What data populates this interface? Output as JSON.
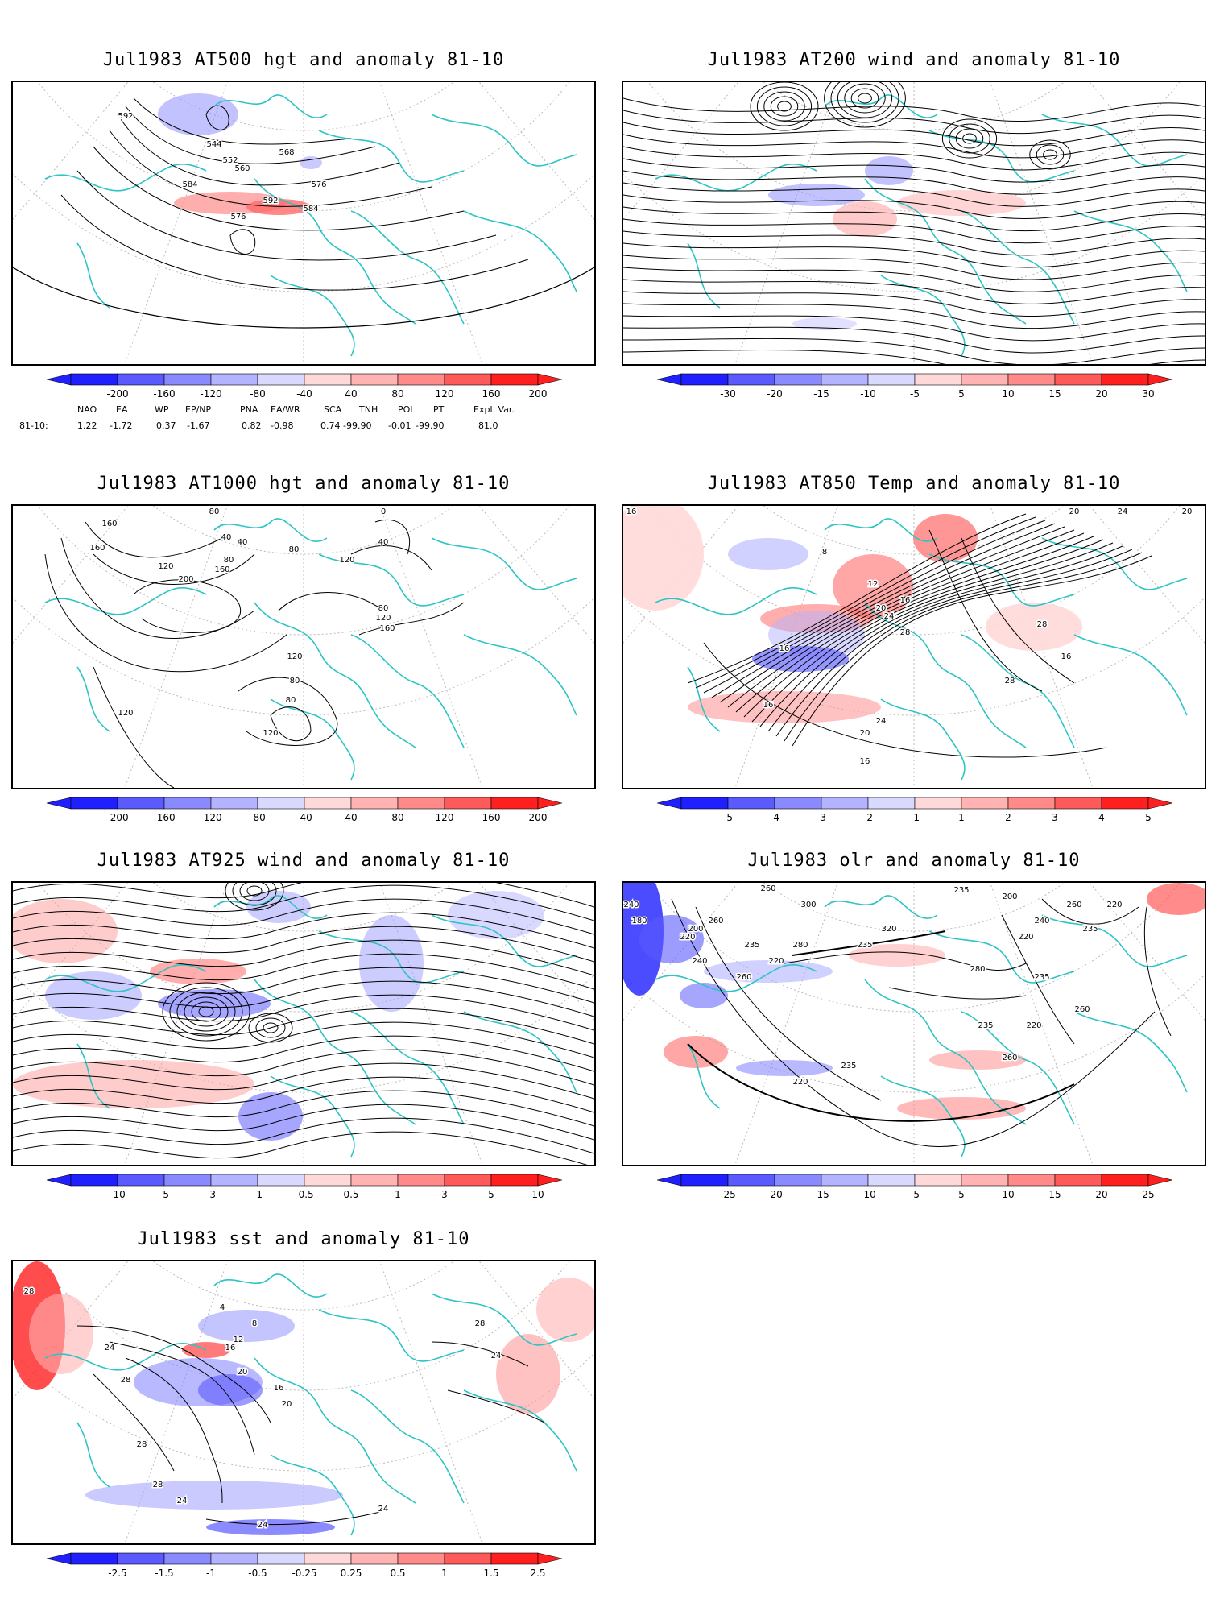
{
  "colors": {
    "coast": "#2ec4c4",
    "contour": "#000000",
    "grid": "#bbbbbb",
    "scale": [
      "#1f1fff",
      "#5a5aff",
      "#8a8aff",
      "#b3b3ff",
      "#d9d9ff",
      "#ffffff",
      "#ffd9d9",
      "#ffb3b3",
      "#ff8a8a",
      "#ff5a5a",
      "#ff1f1f"
    ]
  },
  "panels": [
    {
      "title": "Jul1983 AT500 hgt and anomaly 81-10",
      "colorbar_ticks": [
        "-200",
        "-160",
        "-120",
        "-80",
        "-40",
        "40",
        "80",
        "120",
        "160",
        "200"
      ],
      "contour_labels": [
        "592",
        "544",
        "552",
        "560",
        "568",
        "584",
        "576",
        "576",
        "592",
        "584"
      ],
      "indices_header": [
        "NAO",
        "EA",
        "WP",
        "EP/NP",
        "PNA",
        "EA/WR",
        "SCA",
        "TNH",
        "POL",
        "PT",
        "Expl. Var."
      ],
      "indices_row_label": "81-10:",
      "indices_values": [
        "1.22",
        "-1.72",
        "0.37",
        "-1.67",
        "0.82",
        "-0.98",
        "0.74",
        "-99.90",
        "-0.01",
        "-99.90",
        "81.0"
      ]
    },
    {
      "title": "Jul1983 AT200 wind and anomaly 81-10",
      "colorbar_ticks": [
        "-30",
        "-20",
        "-15",
        "-10",
        "-5",
        "5",
        "10",
        "15",
        "20",
        "30"
      ],
      "contour_labels": []
    },
    {
      "title": "Jul1983 AT1000 hgt and anomaly 81-10",
      "colorbar_ticks": [
        "-200",
        "-160",
        "-120",
        "-80",
        "-40",
        "40",
        "80",
        "120",
        "160",
        "200"
      ],
      "contour_labels": [
        "80",
        "0",
        "160",
        "160",
        "40",
        "120",
        "160",
        "200",
        "80",
        "40",
        "80",
        "120",
        "40",
        "80",
        "120",
        "160",
        "120",
        "80",
        "80",
        "120",
        "120"
      ]
    },
    {
      "title": "Jul1983 AT850 Temp and anomaly 81-10",
      "colorbar_ticks": [
        "-5",
        "-4",
        "-3",
        "-2",
        "-1",
        "1",
        "2",
        "3",
        "4",
        "5"
      ],
      "contour_labels": [
        "16",
        "20",
        "24",
        "20",
        "8",
        "12",
        "16",
        "20",
        "24",
        "28",
        "16",
        "28",
        "16",
        "24",
        "20",
        "16",
        "28",
        "16"
      ]
    },
    {
      "title": "Jul1983 AT925 wind and anomaly 81-10",
      "colorbar_ticks": [
        "-10",
        "-5",
        "-3",
        "-1",
        "-0.5",
        "0.5",
        "1",
        "3",
        "5",
        "10"
      ],
      "contour_labels": []
    },
    {
      "title": "Jul1983 olr and anomaly 81-10",
      "colorbar_ticks": [
        "-25",
        "-20",
        "-15",
        "-10",
        "-5",
        "5",
        "10",
        "15",
        "20",
        "25"
      ],
      "contour_labels": [
        "260",
        "240",
        "235",
        "200",
        "220",
        "180",
        "200",
        "220",
        "240",
        "260",
        "235",
        "220",
        "260",
        "280",
        "300",
        "320",
        "235",
        "280",
        "240",
        "260",
        "235",
        "220",
        "235",
        "260",
        "220",
        "235",
        "235",
        "220",
        "260"
      ]
    },
    {
      "title": "Jul1983 sst and anomaly 81-10",
      "colorbar_ticks": [
        "-2.5",
        "-1.5",
        "-1",
        "-0.5",
        "-0.25",
        "0.25",
        "0.5",
        "1",
        "1.5",
        "2.5"
      ],
      "contour_labels": [
        "28",
        "4",
        "8",
        "12",
        "16",
        "20",
        "24",
        "28",
        "28",
        "24",
        "20",
        "28",
        "24",
        "24",
        "16",
        "28",
        "24"
      ]
    }
  ]
}
